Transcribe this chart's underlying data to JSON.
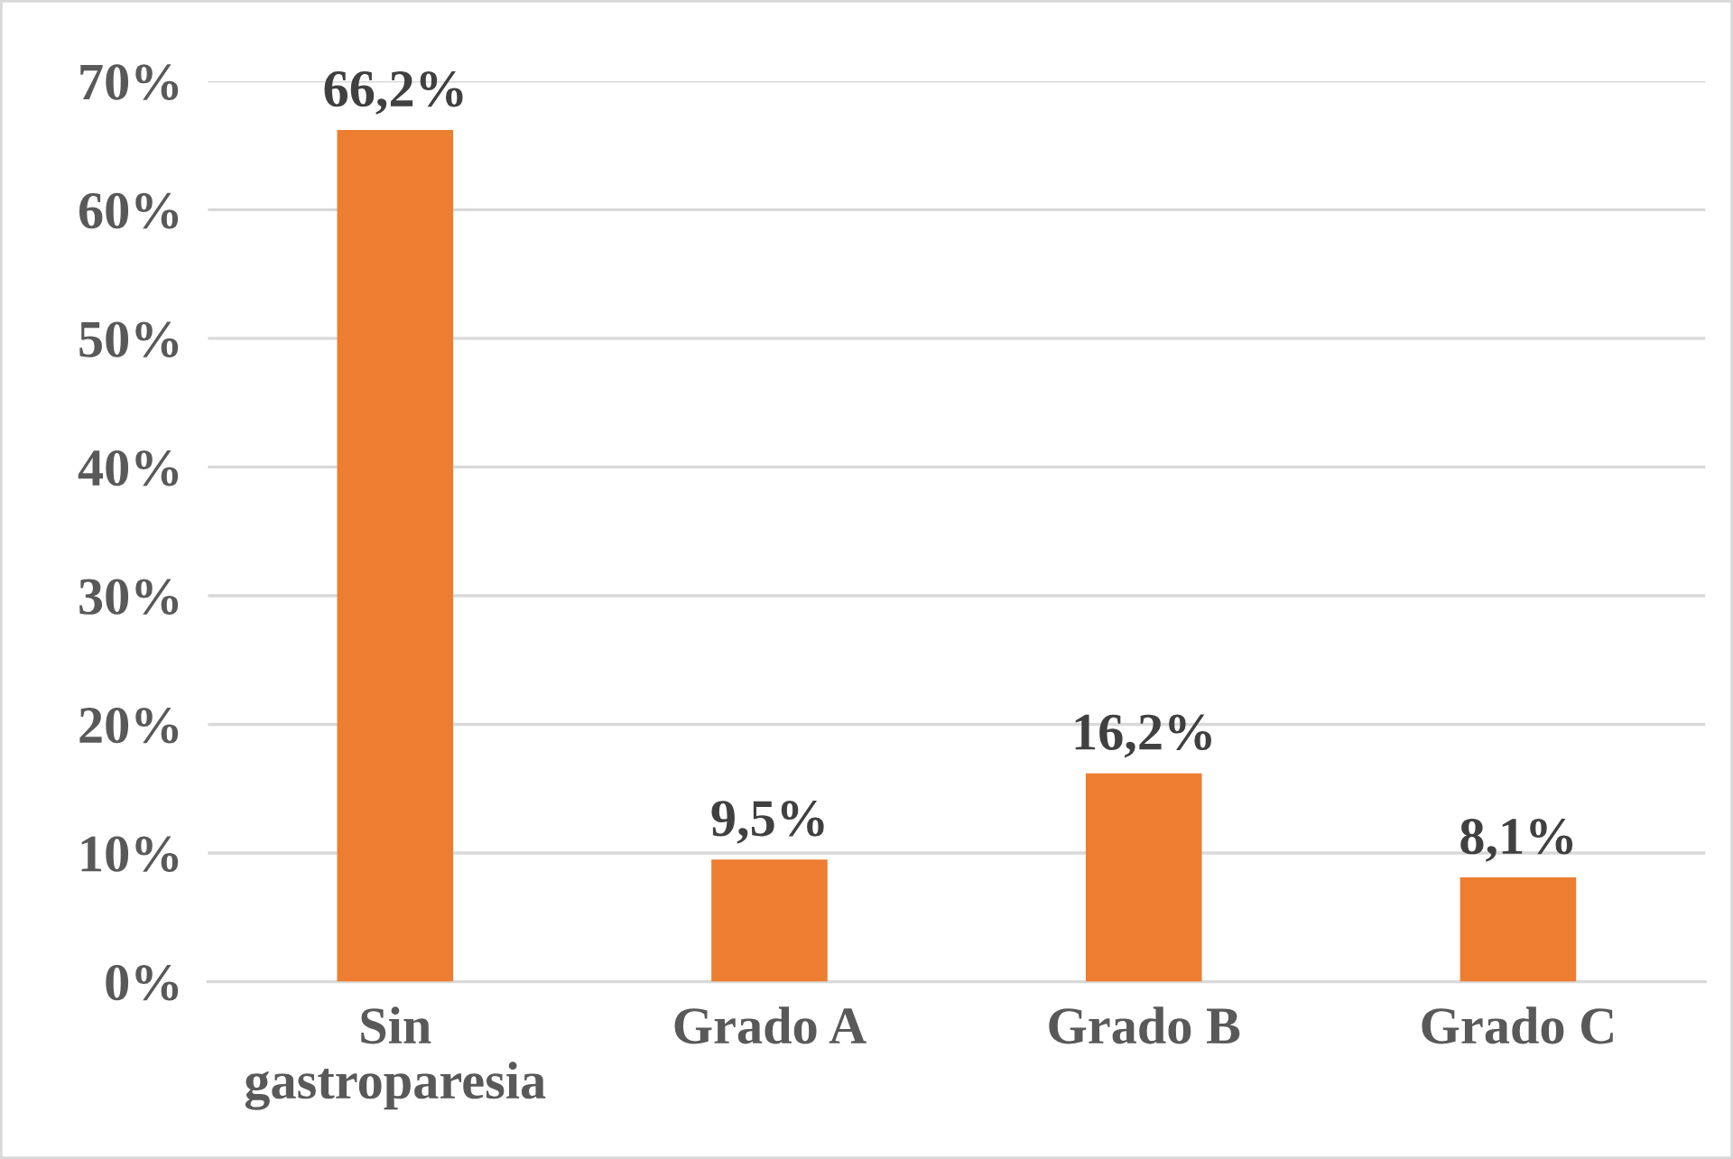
{
  "chart_data": {
    "type": "bar",
    "categories": [
      "Sin\ngastroparesia",
      "Grado A",
      "Grado B",
      "Grado C"
    ],
    "values": [
      66.2,
      9.5,
      16.2,
      8.1
    ],
    "value_labels": [
      "66,2%",
      "9,5%",
      "16,2%",
      "8,1%"
    ],
    "color": "#ed7d31",
    "ylim": [
      0,
      70
    ],
    "yticks": [
      {
        "value": 0,
        "label": "0%"
      },
      {
        "value": 10,
        "label": "10%"
      },
      {
        "value": 20,
        "label": "20%"
      },
      {
        "value": 30,
        "label": "30%"
      },
      {
        "value": 40,
        "label": "40%"
      },
      {
        "value": 50,
        "label": "50%"
      },
      {
        "value": 60,
        "label": "60%"
      },
      {
        "value": 70,
        "label": "70%"
      }
    ],
    "grid": "y"
  }
}
